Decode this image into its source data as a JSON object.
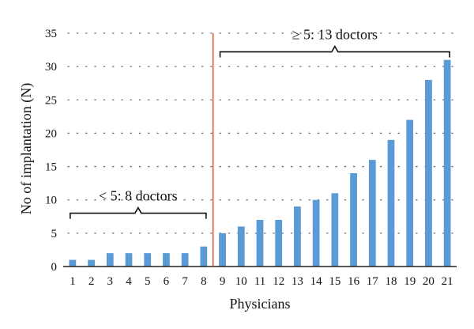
{
  "chart_data": {
    "type": "bar",
    "categories": [
      "1",
      "2",
      "3",
      "4",
      "5",
      "6",
      "7",
      "8",
      "9",
      "10",
      "11",
      "12",
      "13",
      "14",
      "15",
      "16",
      "17",
      "18",
      "19",
      "20",
      "21"
    ],
    "values": [
      1,
      1,
      2,
      2,
      2,
      2,
      2,
      3,
      5,
      6,
      7,
      7,
      9,
      10,
      11,
      14,
      16,
      19,
      22,
      28,
      31
    ],
    "xlabel": "Physicians",
    "ylabel": "No of implantation (N)",
    "ylim": [
      0,
      35
    ],
    "yticks": [
      0,
      5,
      10,
      15,
      20,
      25,
      30,
      35
    ],
    "grid": true,
    "bar_color": "#5b9bd5",
    "divider_color": "#e24a1e",
    "divider_after_category": "8",
    "annotations": [
      {
        "text": "< 5: 8 doctors",
        "from": "1",
        "to": "8",
        "y": 8
      },
      {
        "text": "≥ 5: 13 doctors",
        "from": "9",
        "to": "21",
        "y": 32.2
      }
    ]
  }
}
